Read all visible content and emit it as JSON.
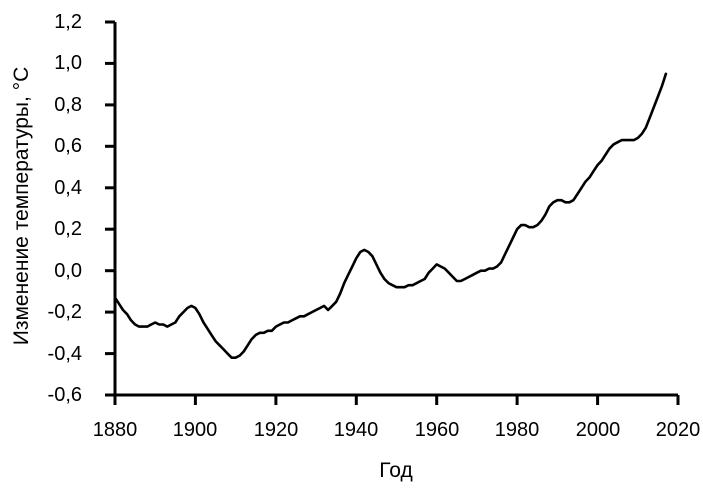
{
  "figure": {
    "background_color": "#ffffff",
    "axis_color": "#000000",
    "text_color": "#000000"
  },
  "chart_data": {
    "type": "line",
    "title": "",
    "xlabel": "Год",
    "ylabel": "Изменение температуры, °C",
    "xlim": [
      1880,
      2020
    ],
    "ylim": [
      -0.6,
      1.2
    ],
    "grid": false,
    "legend": false,
    "line_color": "#000000",
    "x_ticks": {
      "values": [
        1880,
        1900,
        1920,
        1940,
        1960,
        1980,
        2000,
        2020
      ],
      "labels": [
        "1880",
        "1900",
        "1920",
        "1940",
        "1960",
        "1980",
        "2000",
        "2020"
      ]
    },
    "y_ticks": {
      "values": [
        1.2,
        1.0,
        0.8,
        0.6,
        0.4,
        0.2,
        0.0,
        -0.2,
        -0.4,
        -0.6
      ],
      "labels": [
        "1,2",
        "1,0",
        "0,8",
        "0,6",
        "0,4",
        "0,2",
        "0,0",
        "-0,2",
        "-0,4",
        "-0,6"
      ]
    },
    "series": [
      {
        "x_start": 1880,
        "x_step": 1,
        "values": [
          -0.13,
          -0.16,
          -0.19,
          -0.21,
          -0.24,
          -0.26,
          -0.27,
          -0.27,
          -0.27,
          -0.26,
          -0.25,
          -0.26,
          -0.26,
          -0.27,
          -0.26,
          -0.25,
          -0.22,
          -0.2,
          -0.18,
          -0.17,
          -0.18,
          -0.21,
          -0.25,
          -0.28,
          -0.31,
          -0.34,
          -0.36,
          -0.38,
          -0.4,
          -0.42,
          -0.42,
          -0.41,
          -0.39,
          -0.36,
          -0.33,
          -0.31,
          -0.3,
          -0.3,
          -0.29,
          -0.29,
          -0.27,
          -0.26,
          -0.25,
          -0.25,
          -0.24,
          -0.23,
          -0.22,
          -0.22,
          -0.21,
          -0.2,
          -0.19,
          -0.18,
          -0.17,
          -0.19,
          -0.17,
          -0.15,
          -0.11,
          -0.06,
          -0.02,
          0.02,
          0.06,
          0.09,
          0.1,
          0.09,
          0.07,
          0.03,
          -0.01,
          -0.04,
          -0.06,
          -0.07,
          -0.08,
          -0.08,
          -0.08,
          -0.07,
          -0.07,
          -0.06,
          -0.05,
          -0.04,
          -0.01,
          0.01,
          0.03,
          0.02,
          0.01,
          -0.01,
          -0.03,
          -0.05,
          -0.05,
          -0.04,
          -0.03,
          -0.02,
          -0.01,
          0.0,
          0.0,
          0.01,
          0.01,
          0.02,
          0.04,
          0.08,
          0.12,
          0.16,
          0.2,
          0.22,
          0.22,
          0.21,
          0.21,
          0.22,
          0.24,
          0.27,
          0.31,
          0.33,
          0.34,
          0.34,
          0.33,
          0.33,
          0.34,
          0.37,
          0.4,
          0.43,
          0.45,
          0.48,
          0.51,
          0.53,
          0.56,
          0.59,
          0.61,
          0.62,
          0.63,
          0.63,
          0.63,
          0.63,
          0.64,
          0.66,
          0.69,
          0.74,
          0.79,
          0.84,
          0.89,
          0.95
        ]
      }
    ]
  }
}
